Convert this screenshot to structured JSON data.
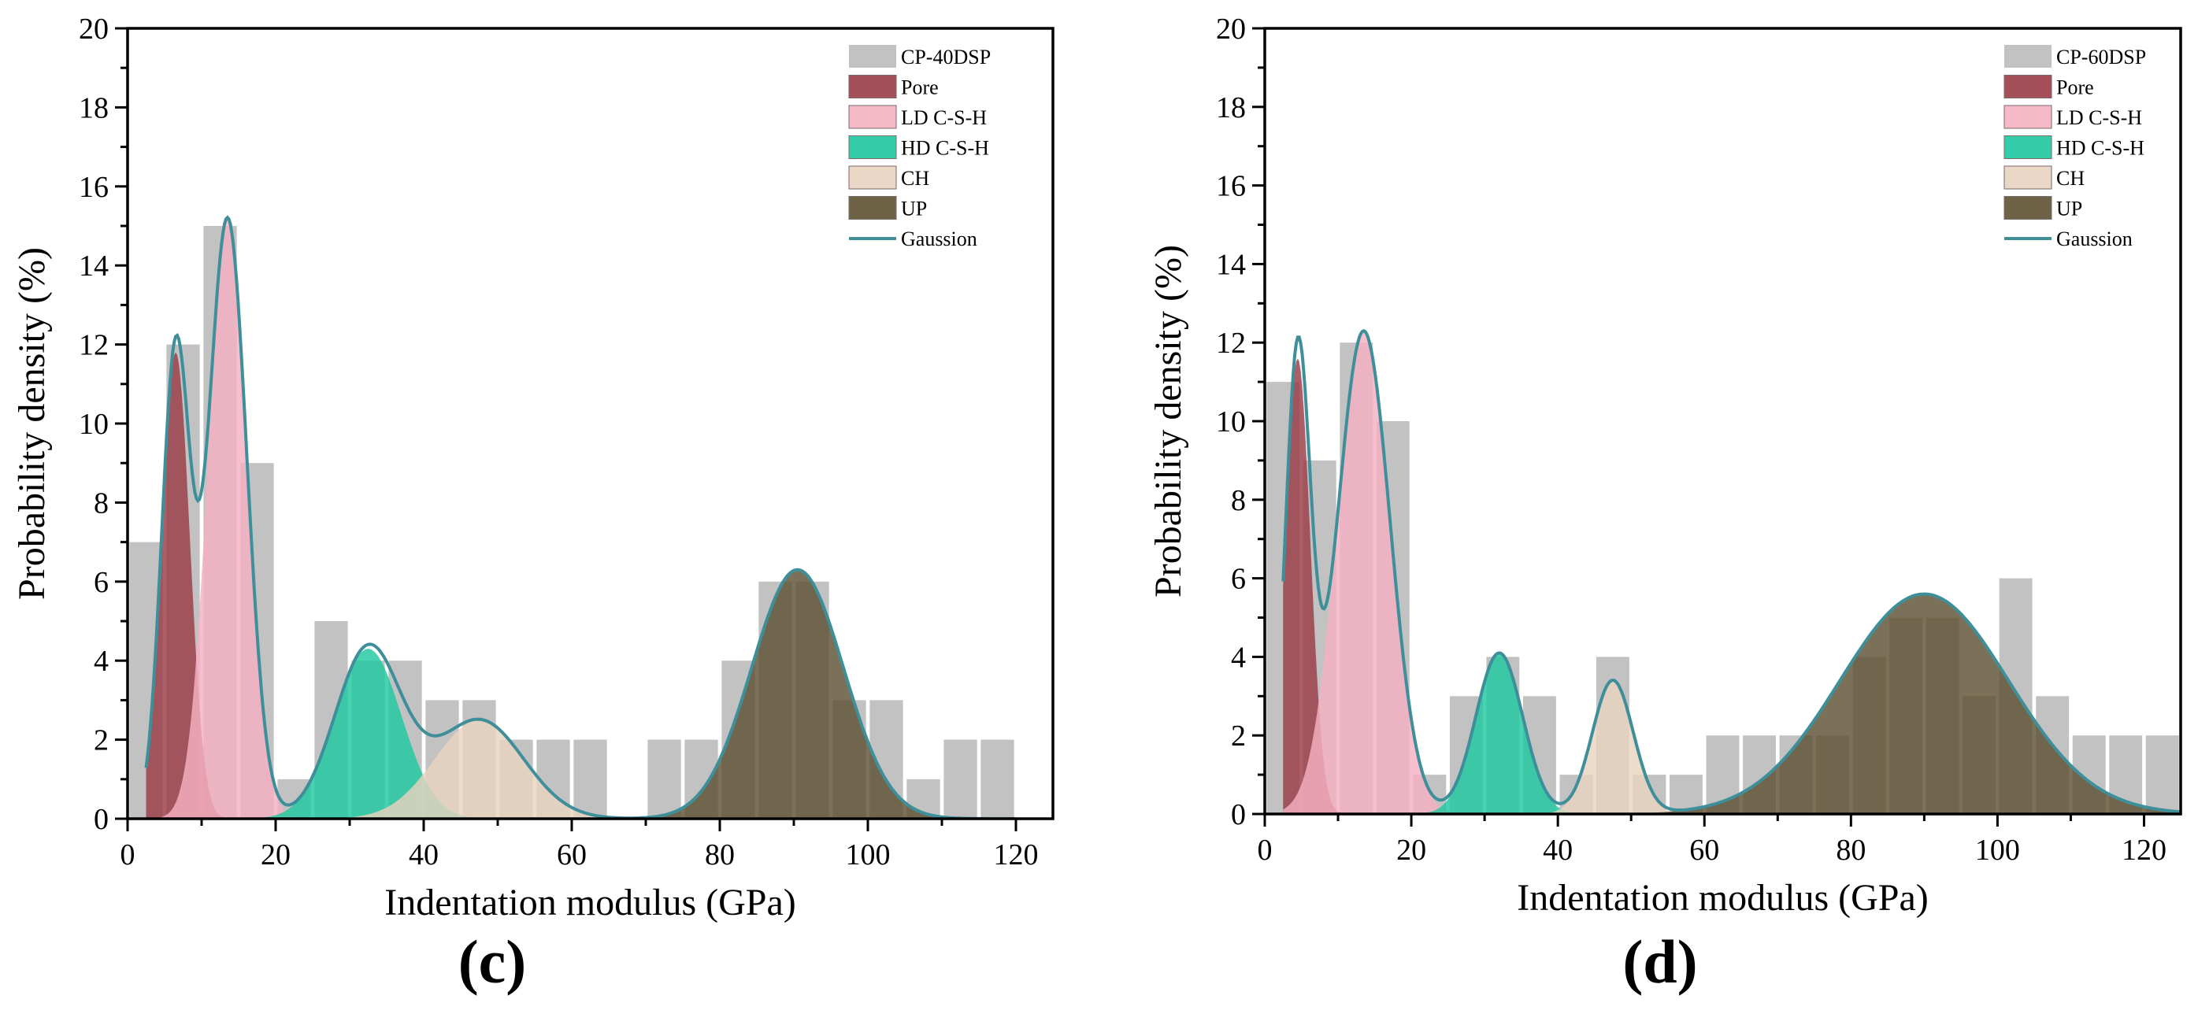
{
  "chart_data": [
    {
      "type": "bar",
      "panel_label": "(c)",
      "xlabel": "Indentation modulus (GPa)",
      "ylabel": "Probability density (%)",
      "xlim": [
        0,
        125
      ],
      "ylim": [
        0,
        20
      ],
      "xticks": [
        0,
        20,
        40,
        60,
        80,
        100,
        120
      ],
      "yticks": [
        0,
        2,
        4,
        6,
        8,
        10,
        12,
        14,
        16,
        18,
        20
      ],
      "legend_position": "top-right",
      "bin_width": 5,
      "histogram": {
        "name": "CP-40DSP",
        "x": [
          2.5,
          7.5,
          12.5,
          17.5,
          22.5,
          27.5,
          32.5,
          37.5,
          42.5,
          47.5,
          52.5,
          57.5,
          62.5,
          67.5,
          72.5,
          77.5,
          82.5,
          87.5,
          92.5,
          97.5,
          102.5,
          107.5,
          112.5,
          117.5
        ],
        "values": [
          7,
          12,
          15,
          9,
          1,
          5,
          4,
          4,
          3,
          3,
          2,
          2,
          2,
          0,
          2,
          2,
          4,
          6,
          6,
          3,
          3,
          1,
          2,
          2
        ]
      },
      "components": [
        {
          "name": "Pore",
          "mean": 6.5,
          "sd": 1.9,
          "peak": 11.8,
          "color": "#9b3c46"
        },
        {
          "name": "LD C-S-H",
          "mean": 13.5,
          "sd": 2.6,
          "peak": 15.2,
          "color": "#f5b1c2"
        },
        {
          "name": "HD C-S-H",
          "mean": 32.5,
          "sd": 4.5,
          "peak": 4.3,
          "color": "#1ec8a0"
        },
        {
          "name": "CH",
          "mean": 47.5,
          "sd": 6.0,
          "peak": 2.5,
          "color": "#e9d3c0"
        },
        {
          "name": "UP",
          "mean": 90.5,
          "sd": 6.2,
          "peak": 6.3,
          "color": "#5e5233"
        }
      ],
      "gauss_line": {
        "name": "Gaussion",
        "color": "#3f8f9b",
        "x_start": 2.5,
        "x_end": 120
      }
    },
    {
      "type": "bar",
      "panel_label": "(d)",
      "xlabel": "Indentation modulus (GPa)",
      "ylabel": "Probability density (%)",
      "xlim": [
        0,
        125
      ],
      "ylim": [
        0,
        20
      ],
      "xticks": [
        0,
        20,
        40,
        60,
        80,
        100,
        120
      ],
      "yticks": [
        0,
        2,
        4,
        6,
        8,
        10,
        12,
        14,
        16,
        18,
        20
      ],
      "legend_position": "top-right",
      "bin_width": 5,
      "histogram": {
        "name": "CP-60DSP",
        "x": [
          2.5,
          7.5,
          12.5,
          17.5,
          22.5,
          27.5,
          32.5,
          37.5,
          42.5,
          47.5,
          52.5,
          57.5,
          62.5,
          67.5,
          72.5,
          77.5,
          82.5,
          87.5,
          92.5,
          97.5,
          102.5,
          107.5,
          112.5,
          117.5,
          122.5
        ],
        "values": [
          11,
          9,
          12,
          10,
          1,
          3,
          4,
          3,
          1,
          4,
          1,
          1,
          2,
          2,
          2,
          2,
          4,
          5,
          5,
          3,
          6,
          3,
          2,
          2,
          2
        ]
      },
      "components": [
        {
          "name": "Pore",
          "mean": 4.5,
          "sd": 1.7,
          "peak": 11.6,
          "color": "#9b3c46"
        },
        {
          "name": "LD C-S-H",
          "mean": 13.5,
          "sd": 3.6,
          "peak": 12.3,
          "color": "#f5b1c2"
        },
        {
          "name": "HD C-S-H",
          "mean": 32.0,
          "sd": 3.2,
          "peak": 4.1,
          "color": "#1ec8a0"
        },
        {
          "name": "CH",
          "mean": 47.5,
          "sd": 2.8,
          "peak": 3.4,
          "color": "#e9d3c0"
        },
        {
          "name": "UP",
          "mean": 90.0,
          "sd": 11.5,
          "peak": 5.6,
          "color": "#5e5233"
        }
      ],
      "gauss_line": {
        "name": "Gaussion",
        "color": "#3f8f9b",
        "x_start": 2.5,
        "x_end": 125
      }
    }
  ]
}
